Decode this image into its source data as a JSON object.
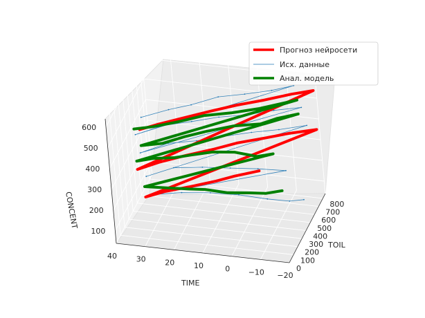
{
  "chart_data": {
    "type": "3d-line",
    "title": "",
    "axes": {
      "x": {
        "label": "TIME",
        "ticks": [
          40,
          30,
          20,
          10,
          0,
          -10,
          -20
        ],
        "tick_labels": [
          "40",
          "30",
          "20",
          "10",
          "0",
          "−10",
          "−20"
        ]
      },
      "y": {
        "label": "TOIL",
        "ticks": [
          0,
          100,
          200,
          300,
          400,
          500,
          600,
          700,
          800
        ],
        "tick_labels": [
          "0",
          "100",
          "200",
          "300",
          "400",
          "500",
          "600",
          "700",
          "800"
        ]
      },
      "z": {
        "label": "CONCENT",
        "ticks": [
          100,
          200,
          300,
          400,
          500,
          600
        ],
        "tick_labels": [
          "100",
          "200",
          "300",
          "400",
          "500",
          "600"
        ]
      }
    },
    "grid": true,
    "legend": {
      "placement": "upper-right",
      "entries": [
        {
          "name": "Прогноз нейросети",
          "color": "#ff0000"
        },
        {
          "name": "Исх. данные",
          "color": "#1f77b4"
        },
        {
          "name": "Анал. модель",
          "color": "#008000"
        }
      ]
    },
    "series": [
      {
        "name": "Прогноз нейросети",
        "color": "#ff0000",
        "points": [
          [
            30,
            100,
            565
          ],
          [
            25,
            200,
            560
          ],
          [
            18,
            300,
            562
          ],
          [
            10,
            400,
            568
          ],
          [
            2,
            500,
            572
          ],
          [
            -6,
            600,
            570
          ],
          [
            -14,
            700,
            572
          ],
          [
            -20,
            800,
            560
          ],
          [
            32,
            100,
            370
          ],
          [
            26,
            200,
            375
          ],
          [
            18,
            300,
            382
          ],
          [
            10,
            400,
            385
          ],
          [
            3,
            500,
            388
          ],
          [
            -5,
            600,
            385
          ],
          [
            -12,
            700,
            380
          ],
          [
            -20,
            800,
            372
          ],
          [
            30,
            100,
            240
          ],
          [
            25,
            200,
            235
          ],
          [
            18,
            300,
            230
          ],
          [
            10,
            400,
            232
          ],
          [
            5,
            500,
            225
          ],
          [
            -2,
            600,
            222
          ]
        ]
      },
      {
        "name": "Анал. модель",
        "color": "#008000",
        "points": [
          [
            32,
            100,
            565
          ],
          [
            27,
            200,
            545
          ],
          [
            20,
            300,
            540
          ],
          [
            12,
            400,
            545
          ],
          [
            4,
            500,
            532
          ],
          [
            -4,
            600,
            526
          ],
          [
            -10,
            700,
            520
          ],
          [
            -14,
            800,
            505
          ],
          [
            30,
            100,
            488
          ],
          [
            24,
            200,
            470
          ],
          [
            18,
            300,
            472
          ],
          [
            12,
            400,
            468
          ],
          [
            4,
            500,
            468
          ],
          [
            -4,
            600,
            452
          ],
          [
            -8,
            700,
            445
          ],
          [
            -14,
            800,
            438
          ],
          [
            32,
            100,
            410
          ],
          [
            28,
            200,
            390
          ],
          [
            22,
            300,
            365
          ],
          [
            18,
            400,
            345
          ],
          [
            12,
            500,
            330
          ],
          [
            6,
            600,
            300
          ],
          [
            0,
            700,
            250
          ],
          [
            -4,
            800,
            230
          ],
          [
            30,
            100,
            290
          ],
          [
            24,
            200,
            255
          ],
          [
            18,
            300,
            220
          ],
          [
            14,
            400,
            185
          ],
          [
            8,
            500,
            140
          ],
          [
            2,
            600,
            110
          ],
          [
            -2,
            700,
            75
          ],
          [
            -6,
            800,
            55
          ]
        ]
      },
      {
        "name": "Исх. данные",
        "color": "#1f77b4",
        "points": [
          [
            30,
            150,
            605
          ],
          [
            22,
            260,
            612
          ],
          [
            16,
            380,
            598
          ],
          [
            8,
            480,
            610
          ],
          [
            0,
            560,
            605
          ],
          [
            -8,
            650,
            600
          ],
          [
            -14,
            760,
            590
          ],
          [
            32,
            120,
            530
          ],
          [
            24,
            240,
            540
          ],
          [
            16,
            360,
            525
          ],
          [
            8,
            460,
            520
          ],
          [
            0,
            560,
            505
          ],
          [
            -8,
            660,
            500
          ],
          [
            -16,
            760,
            488
          ],
          [
            31,
            130,
            440
          ],
          [
            23,
            250,
            452
          ],
          [
            15,
            370,
            430
          ],
          [
            7,
            470,
            425
          ],
          [
            -1,
            570,
            418
          ],
          [
            -9,
            670,
            405
          ],
          [
            -17,
            780,
            395
          ],
          [
            30,
            150,
            320
          ],
          [
            22,
            260,
            332
          ],
          [
            14,
            380,
            300
          ],
          [
            6,
            480,
            270
          ],
          [
            -2,
            580,
            240
          ],
          [
            -10,
            680,
            205
          ],
          [
            28,
            140,
            240
          ],
          [
            20,
            260,
            215
          ],
          [
            12,
            380,
            180
          ],
          [
            4,
            490,
            140
          ],
          [
            -4,
            600,
            90
          ],
          [
            -10,
            700,
            50
          ],
          [
            -14,
            760,
            40
          ]
        ]
      }
    ]
  }
}
